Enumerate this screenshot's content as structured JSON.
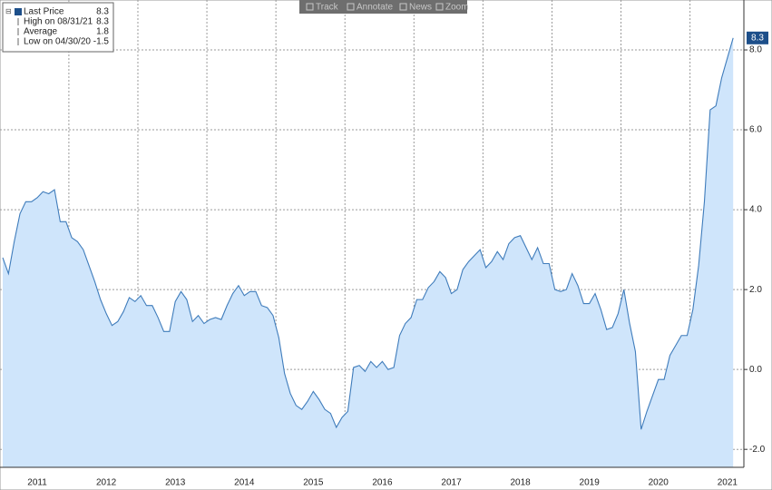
{
  "toolbar": [
    "Track",
    "Annotate",
    "News",
    "Zoom"
  ],
  "chart_data": {
    "type": "area",
    "categories": [
      null,
      null,
      null,
      null,
      null,
      null,
      "2011",
      null,
      null,
      null,
      null,
      null,
      null,
      null,
      null,
      null,
      null,
      null,
      "2012",
      null,
      null,
      null,
      null,
      null,
      null,
      null,
      null,
      null,
      null,
      null,
      "2013",
      null,
      null,
      null,
      null,
      null,
      null,
      null,
      null,
      null,
      null,
      null,
      "2014",
      null,
      null,
      null,
      null,
      null,
      null,
      null,
      null,
      null,
      null,
      null,
      "2015",
      null,
      null,
      null,
      null,
      null,
      null,
      null,
      null,
      null,
      null,
      null,
      "2016",
      null,
      null,
      null,
      null,
      null,
      null,
      null,
      null,
      null,
      null,
      null,
      "2017",
      null,
      null,
      null,
      null,
      null,
      null,
      null,
      null,
      null,
      null,
      null,
      "2018",
      null,
      null,
      null,
      null,
      null,
      null,
      null,
      null,
      null,
      null,
      null,
      "2019",
      null,
      null,
      null,
      null,
      null,
      null,
      null,
      null,
      null,
      null,
      null,
      "2020",
      null,
      null,
      null,
      null,
      null,
      null,
      null,
      null,
      null,
      null,
      null,
      "2021",
      null
    ],
    "series": [
      {
        "name": "Last Price",
        "color": "#3f7cbb",
        "fill": "#cfe5fb",
        "last_value": 8.3,
        "values": [
          2.8,
          2.4,
          3.2,
          3.9,
          4.2,
          4.2,
          4.3,
          4.45,
          4.4,
          4.5,
          3.7,
          3.7,
          3.3,
          3.2,
          3.0,
          2.6,
          2.2,
          1.75,
          1.4,
          1.1,
          1.2,
          1.45,
          1.8,
          1.7,
          1.85,
          1.6,
          1.6,
          1.3,
          0.95,
          0.95,
          1.7,
          1.95,
          1.75,
          1.2,
          1.35,
          1.15,
          1.25,
          1.3,
          1.25,
          1.6,
          1.9,
          2.1,
          1.85,
          1.95,
          1.95,
          1.6,
          1.55,
          1.35,
          0.8,
          -0.1,
          -0.6,
          -0.9,
          -1.0,
          -0.8,
          -0.55,
          -0.75,
          -1.0,
          -1.1,
          -1.45,
          -1.2,
          -1.05,
          0.05,
          0.1,
          -0.05,
          0.2,
          0.05,
          0.2,
          0.0,
          0.05,
          0.85,
          1.15,
          1.3,
          1.75,
          1.75,
          2.05,
          2.2,
          2.45,
          2.3,
          1.9,
          2.0,
          2.5,
          2.7,
          2.85,
          3.0,
          2.55,
          2.7,
          2.95,
          2.75,
          3.15,
          3.3,
          3.35,
          3.05,
          2.75,
          3.05,
          2.65,
          2.65,
          2.0,
          1.95,
          2.0,
          2.4,
          2.1,
          1.65,
          1.65,
          1.9,
          1.5,
          1.0,
          1.05,
          1.4,
          2.0,
          1.15,
          0.45,
          -1.5,
          -1.05,
          -0.65,
          -0.25,
          -0.25,
          0.35,
          0.6,
          0.85,
          0.85,
          1.5,
          2.6,
          4.2,
          6.5,
          6.6,
          7.3,
          7.8,
          8.3
        ]
      }
    ],
    "stats": [
      {
        "label": "High on 08/31/21",
        "value": 8.3
      },
      {
        "label": "Average",
        "value": 1.8
      },
      {
        "label": "Low on 04/30/20",
        "value": -1.5
      }
    ],
    "ylim": [
      -2.45,
      9.25
    ],
    "yticks": [
      {
        "value": -2,
        "label": "-2.0"
      },
      {
        "value": 0,
        "label": "0.0"
      },
      {
        "value": 2,
        "label": "2.0"
      },
      {
        "value": 4,
        "label": "4.0"
      },
      {
        "value": 6,
        "label": "6.0"
      },
      {
        "value": 8,
        "label": "8.0"
      }
    ],
    "grid": true
  }
}
